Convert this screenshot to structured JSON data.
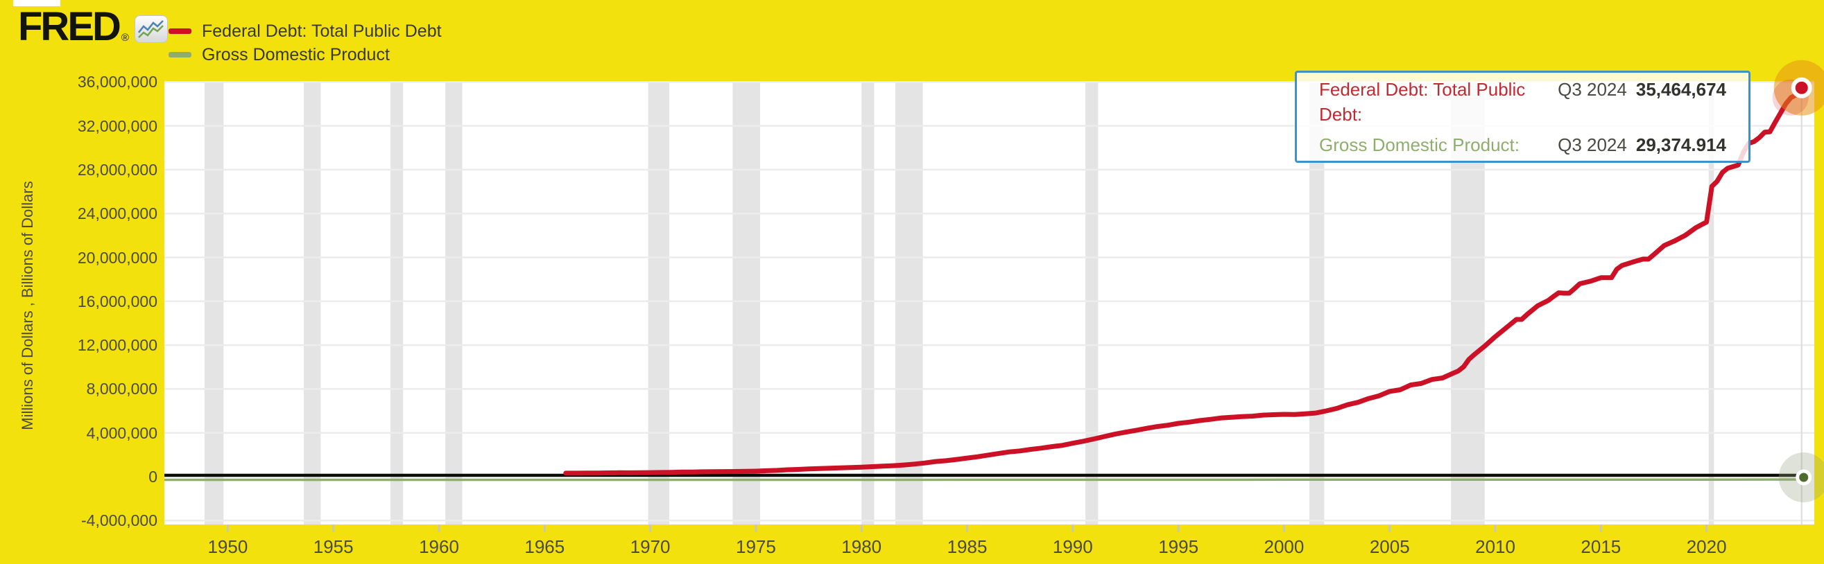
{
  "header": {
    "logo_text": "FRED",
    "registered_mark": "®",
    "legend": [
      {
        "label": "Federal Debt: Total Public Debt",
        "color": "#CC1127"
      },
      {
        "label": "Gross Domestic Product",
        "color": "#8FAE6E"
      }
    ]
  },
  "tooltip": {
    "rows": [
      {
        "label": "Federal Debt: Total Public Debt:",
        "period": "Q3 2024",
        "value": "35,464,674",
        "label_color": "#C22A33"
      },
      {
        "label": "Gross Domestic Product:",
        "period": "Q3 2024",
        "value": "29,374.914",
        "label_color": "#8FAE6E"
      }
    ]
  },
  "chart_data": {
    "type": "line",
    "title": "",
    "xlabel": "",
    "ylabel": "Millions of Dollars , Billions of Dollars",
    "grid": true,
    "legend_position": "top-left",
    "xlim": [
      1947.0,
      2025.1
    ],
    "ylim": [
      -4360000,
      36020000
    ],
    "colors": {
      "background": "#F3E10E",
      "plot_background": "#FFFFFF",
      "recession_band": "#E4E4E4",
      "gridline": "#ECECEC",
      "zero_line": "#0D0D08",
      "crosshair": "#DBDBDB",
      "tick_text": "#4C4B42",
      "tooltip_border": "#4191C9"
    },
    "x_ticks": [
      {
        "value": 1950,
        "label": "1950"
      },
      {
        "value": 1955,
        "label": "1955"
      },
      {
        "value": 1960,
        "label": "1960"
      },
      {
        "value": 1965,
        "label": "1965"
      },
      {
        "value": 1970,
        "label": "1970"
      },
      {
        "value": 1975,
        "label": "1975"
      },
      {
        "value": 1980,
        "label": "1980"
      },
      {
        "value": 1985,
        "label": "1985"
      },
      {
        "value": 1990,
        "label": "1990"
      },
      {
        "value": 1995,
        "label": "1995"
      },
      {
        "value": 2000,
        "label": "2000"
      },
      {
        "value": 2005,
        "label": "2005"
      },
      {
        "value": 2010,
        "label": "2010"
      },
      {
        "value": 2015,
        "label": "2015"
      },
      {
        "value": 2020,
        "label": "2020"
      }
    ],
    "y_ticks": [
      {
        "value": 36000000,
        "label": "36,000,000"
      },
      {
        "value": 32000000,
        "label": "32,000,000"
      },
      {
        "value": 28000000,
        "label": "28,000,000"
      },
      {
        "value": 24000000,
        "label": "24,000,000"
      },
      {
        "value": 20000000,
        "label": "20,000,000"
      },
      {
        "value": 16000000,
        "label": "16,000,000"
      },
      {
        "value": 12000000,
        "label": "12,000,000"
      },
      {
        "value": 8000000,
        "label": "8,000,000"
      },
      {
        "value": 4000000,
        "label": "4,000,000"
      },
      {
        "value": 0,
        "label": "0"
      },
      {
        "value": -4000000,
        "label": "-4,000,000"
      }
    ],
    "recession_bands": [
      [
        1948.9,
        1949.8
      ],
      [
        1953.6,
        1954.4
      ],
      [
        1957.7,
        1958.3
      ],
      [
        1960.3,
        1961.1
      ],
      [
        1969.9,
        1970.9
      ],
      [
        1973.9,
        1975.2
      ],
      [
        1980.0,
        1980.6
      ],
      [
        1981.6,
        1982.9
      ],
      [
        1990.6,
        1991.2
      ],
      [
        2001.2,
        2001.9
      ],
      [
        2007.9,
        2009.5
      ],
      [
        2020.1,
        2020.35
      ]
    ],
    "hover_x": 2024.5,
    "last_points": [
      {
        "series": "Federal Debt: Total Public Debt",
        "period": "Q3 2024",
        "value": 35464674
      },
      {
        "series": "Gross Domestic Product",
        "period": "Q3 2024",
        "value": 29374.914
      }
    ],
    "series": [
      {
        "name": "Federal Debt: Total Public Debt",
        "units": "Millions of Dollars",
        "color": "#CC1127",
        "points": [
          [
            1966,
            320368
          ],
          [
            1966.5,
            324748
          ],
          [
            1967,
            326221
          ],
          [
            1967.5,
            334574
          ],
          [
            1968,
            347578
          ],
          [
            1968.5,
            358029
          ],
          [
            1969,
            353720
          ],
          [
            1969.5,
            366278
          ],
          [
            1970,
            370919
          ],
          [
            1970.5,
            382603
          ],
          [
            1971,
            398130
          ],
          [
            1971.5,
            424131
          ],
          [
            1972,
            426435
          ],
          [
            1972.5,
            448473
          ],
          [
            1973,
            458142
          ],
          [
            1973.5,
            468426
          ],
          [
            1974,
            475060
          ],
          [
            1974.5,
            486247
          ],
          [
            1975,
            508652
          ],
          [
            1975.5,
            544131
          ],
          [
            1976,
            576649
          ],
          [
            1976.5,
            631866
          ],
          [
            1977,
            660677
          ],
          [
            1977.5,
            709138
          ],
          [
            1978,
            749000
          ],
          [
            1978.5,
            780425
          ],
          [
            1979,
            804675
          ],
          [
            1979.5,
            833751
          ],
          [
            1980,
            863451
          ],
          [
            1980.5,
            914317
          ],
          [
            1981,
            963962
          ],
          [
            1981.5,
            1003941
          ],
          [
            1982,
            1066404
          ],
          [
            1982.5,
            1147227
          ],
          [
            1983,
            1249322
          ],
          [
            1983.5,
            1381886
          ],
          [
            1984,
            1463068
          ],
          [
            1984.5,
            1576748
          ],
          [
            1985,
            1702844
          ],
          [
            1985.5,
            1823103
          ],
          [
            1986,
            1972759
          ],
          [
            1986.5,
            2125303
          ],
          [
            1987,
            2260595
          ],
          [
            1987.5,
            2350277
          ],
          [
            1988,
            2488535
          ],
          [
            1988.5,
            2602337
          ],
          [
            1989,
            2740944
          ],
          [
            1989.5,
            2857431
          ],
          [
            1990,
            3052529
          ],
          [
            1990.5,
            3233313
          ],
          [
            1991,
            3441367
          ],
          [
            1991.5,
            3665303
          ],
          [
            1992,
            3881276
          ],
          [
            1992.5,
            4064621
          ],
          [
            1993,
            4230580
          ],
          [
            1993.5,
            4411489
          ],
          [
            1994,
            4575869
          ],
          [
            1994.5,
            4692750
          ],
          [
            1995,
            4864116
          ],
          [
            1995.5,
            4973983
          ],
          [
            1996,
            5117786
          ],
          [
            1996.5,
            5224811
          ],
          [
            1997,
            5353971
          ],
          [
            1997.5,
            5413146
          ],
          [
            1998,
            5478189
          ],
          [
            1998.5,
            5526193
          ],
          [
            1999,
            5615444
          ],
          [
            1999.5,
            5656271
          ],
          [
            2000,
            5685108
          ],
          [
            2000.5,
            5674178
          ],
          [
            2001,
            5735928
          ],
          [
            2001.5,
            5807463
          ],
          [
            2002,
            6003453
          ],
          [
            2002.5,
            6228236
          ],
          [
            2003,
            6558996
          ],
          [
            2003.5,
            6783231
          ],
          [
            2004,
            7131068
          ],
          [
            2004.5,
            7379053
          ],
          [
            2005,
            7777880
          ],
          [
            2005.5,
            7932710
          ],
          [
            2006,
            8368187
          ],
          [
            2006.5,
            8506974
          ],
          [
            2007,
            8867724
          ],
          [
            2007.5,
            9007653
          ],
          [
            2008,
            9437593
          ],
          [
            2008.25,
            9645293
          ],
          [
            2008.5,
            10024725
          ],
          [
            2008.75,
            10699805
          ],
          [
            2009,
            11126941
          ],
          [
            2009.5,
            11909829
          ],
          [
            2010,
            12773123
          ],
          [
            2010.5,
            13561623
          ],
          [
            2011,
            14343088
          ],
          [
            2011.25,
            14344670
          ],
          [
            2011.5,
            14790340
          ],
          [
            2012,
            15582078
          ],
          [
            2012.5,
            16066241
          ],
          [
            2012.75,
            16432730
          ],
          [
            2013,
            16771378
          ],
          [
            2013.25,
            16738184
          ],
          [
            2013.5,
            16738184
          ],
          [
            2013.75,
            17156117
          ],
          [
            2014,
            17601227
          ],
          [
            2014.5,
            17824071
          ],
          [
            2015,
            18152056
          ],
          [
            2015.25,
            18151150
          ],
          [
            2015.5,
            18151998
          ],
          [
            2015.75,
            18922179
          ],
          [
            2016,
            19264939
          ],
          [
            2016.5,
            19573445
          ],
          [
            2017,
            19846420
          ],
          [
            2017.25,
            19844554
          ],
          [
            2017.5,
            20244900
          ],
          [
            2018,
            21089643
          ],
          [
            2018.5,
            21516058
          ],
          [
            2019,
            22023544
          ],
          [
            2019.5,
            22719402
          ],
          [
            2020,
            23223813
          ],
          [
            2020.25,
            26477561
          ],
          [
            2020.5,
            26945391
          ],
          [
            2020.75,
            27747798
          ],
          [
            2021,
            28132570
          ],
          [
            2021.5,
            28428919
          ],
          [
            2021.75,
            29617215
          ],
          [
            2022,
            30400067
          ],
          [
            2022.25,
            30568581
          ],
          [
            2022.5,
            30928912
          ],
          [
            2022.75,
            31419689
          ],
          [
            2023,
            31458438
          ],
          [
            2023.25,
            32332274
          ],
          [
            2023.5,
            33167334
          ],
          [
            2023.75,
            34001494
          ],
          [
            2024,
            34587021
          ],
          [
            2024.25,
            34831634
          ],
          [
            2024.5,
            35464674
          ]
        ]
      },
      {
        "name": "Gross Domestic Product",
        "units": "Billions of Dollars",
        "color": "#8FAE6E",
        "points": [
          [
            1947,
            243.164
          ],
          [
            1950,
            280.828
          ],
          [
            1955,
            414.749
          ],
          [
            1960,
            542.648
          ],
          [
            1965,
            719.053
          ],
          [
            1970,
            1051.2
          ],
          [
            1975,
            1684.904
          ],
          [
            1980,
            2857.307
          ],
          [
            1985,
            4338.979
          ],
          [
            1990,
            5963.144
          ],
          [
            1995,
            7639.749
          ],
          [
            2000,
            10250.952
          ],
          [
            2005,
            13039.197
          ],
          [
            2010,
            15048.97
          ],
          [
            2015,
            18206.023
          ],
          [
            2020,
            21538.032
          ],
          [
            2022,
            26006.893
          ],
          [
            2024.5,
            29374.914
          ]
        ]
      }
    ]
  }
}
